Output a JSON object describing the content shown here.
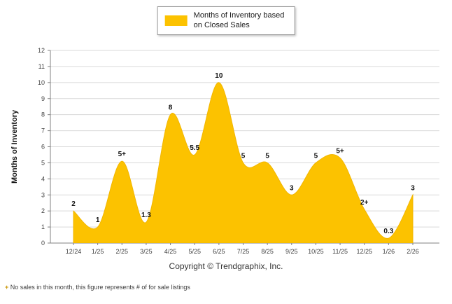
{
  "legend": {
    "label_line1": "Months of Inventory based",
    "label_line2": "on Closed Sales"
  },
  "footer": {
    "copyright": "Copyright © Trendgraphix, Inc."
  },
  "note": {
    "marker": "+",
    "text": "No sales in this month, this figure represents # of for sale listings"
  },
  "chart_data": {
    "type": "area",
    "title": "",
    "ylabel": "Months of Inventory",
    "xlabel": "",
    "categories": [
      "12/24",
      "1/25",
      "2/25",
      "3/25",
      "4/25",
      "5/25",
      "6/25",
      "7/25",
      "8/25",
      "9/25",
      "10/25",
      "11/25",
      "12/25",
      "1/26",
      "2/26"
    ],
    "values": [
      2,
      1,
      5.1,
      1.3,
      8,
      5.5,
      10,
      5,
      5,
      3,
      5,
      5.3,
      2.1,
      0.3,
      3
    ],
    "point_labels": [
      "2",
      "1",
      "5+",
      "1.3",
      "8",
      "5.5",
      "10",
      "5",
      "5",
      "3",
      "5",
      "5+",
      "2+",
      "0.3",
      "3"
    ],
    "ylim": [
      0,
      12
    ],
    "ytick_step": 1,
    "grid": true,
    "legend_position": "top-center",
    "area_color": "#FCC200",
    "area_stroke_color": "#F2B600",
    "gridline_color": "#d9d9d9",
    "axis_color": "#808080",
    "tick_label_color": "#404040",
    "data_label_color": "#111111"
  }
}
